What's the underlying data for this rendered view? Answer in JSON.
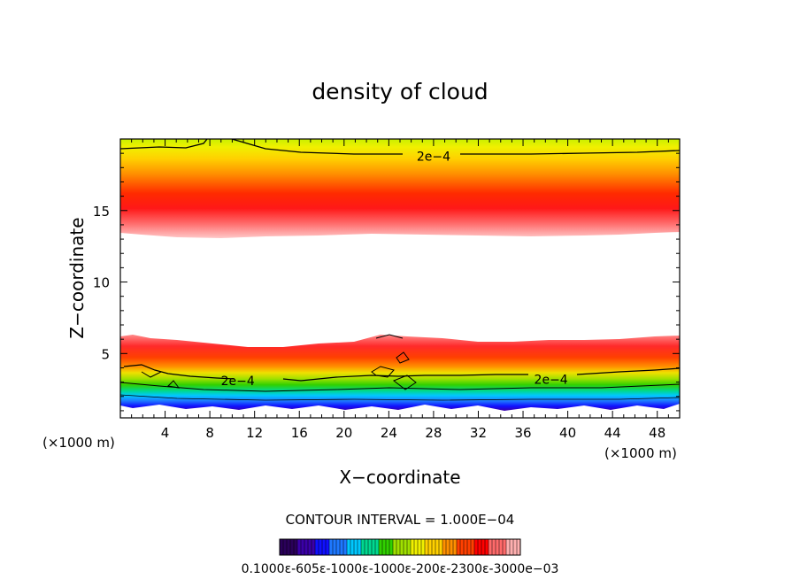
{
  "chart_data": {
    "type": "heatmap",
    "title": "density of cloud",
    "xlabel": "X−coordinate",
    "ylabel": "Z−coordinate",
    "x_unit_left": "(×1000 m)",
    "x_unit_right": "(×1000 m)",
    "xlim": [
      0,
      50
    ],
    "ylim": [
      0.5,
      20
    ],
    "xticks": [
      4,
      8,
      12,
      16,
      20,
      24,
      28,
      32,
      36,
      40,
      44,
      48
    ],
    "yticks": [
      5,
      10,
      15
    ],
    "contour_labels": [
      {
        "text": "2e−4",
        "x": 28,
        "z": 18.8
      },
      {
        "text": "2e−4",
        "x": 10.5,
        "z": 3.1
      },
      {
        "text": "2e−4",
        "x": 38.5,
        "z": 3.2
      }
    ],
    "upper_layer": {
      "core_z": 15,
      "peak_density": 0.00039,
      "bottom_z": 13.2,
      "top_z": 19.8
    },
    "lower_layer": {
      "core_z": 4.2,
      "peak_density": 0.00039,
      "top_z": 5.6,
      "bottom_z": 1.0
    },
    "contour_interval": "CONTOUR INTERVAL = 1.000E−04",
    "colorbar_labels": "0.1000ε-605ε-1000ε-1000ε-200ε-2300ε-3000e−03",
    "colorbar_colors": [
      "#2a005a",
      "#3b00a8",
      "#1010ff",
      "#1e78ff",
      "#00c8ff",
      "#00d890",
      "#30d000",
      "#a0e000",
      "#f0f000",
      "#ffd000",
      "#ff9000",
      "#ff4000",
      "#ff0000",
      "#ff6a6a",
      "#ffb0b0"
    ]
  }
}
